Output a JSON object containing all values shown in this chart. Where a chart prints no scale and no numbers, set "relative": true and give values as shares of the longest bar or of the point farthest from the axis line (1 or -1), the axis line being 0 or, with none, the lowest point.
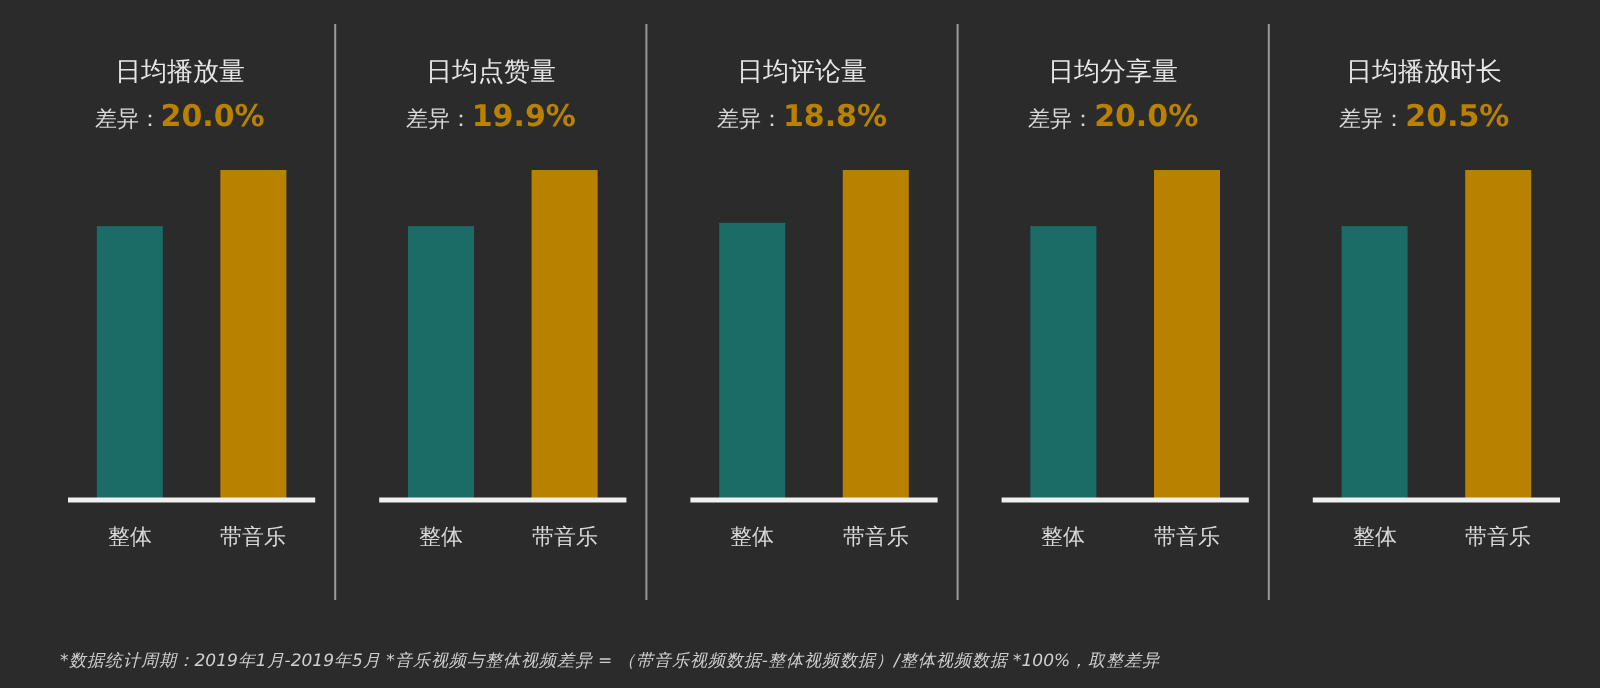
{
  "chart_data": [
    {
      "type": "bar",
      "title": "日均播放量",
      "subtitle": "差异：**20.0%**",
      "categories": [
        "整体",
        "带音乐"
      ],
      "values": [
        0.83,
        1
      ],
      "colors": [
        "#1b6b66",
        "#b88200"
      ],
      "relative": true,
      "annotations": [
        "*数据统计周期：2019年1月-2019年5月 *音乐视频与整体视频差异 = （带音乐视频数据-整体视频数据）/整体视频数据 *100%，取整差异"
      ]
    },
    {
      "type": "bar",
      "title": "日均点赞量",
      "subtitle": "差异：**19.9%**",
      "categories": [
        "整体",
        "带音乐"
      ],
      "values": [
        0.83,
        1
      ],
      "colors": [
        "#1b6b66",
        "#b88200"
      ],
      "relative": true
    },
    {
      "type": "bar",
      "title": "日均评论量",
      "subtitle": "差异：**18.8%**",
      "categories": [
        "整体",
        "带音乐"
      ],
      "values": [
        0.84,
        1
      ],
      "colors": [
        "#1b6b66",
        "#b88200"
      ],
      "relative": true
    },
    {
      "type": "bar",
      "title": "日均分享量",
      "subtitle": "差异：**20.0%**",
      "categories": [
        "整体",
        "带音乐"
      ],
      "values": [
        0.83,
        1
      ],
      "colors": [
        "#1b6b66",
        "#b88200"
      ],
      "relative": true
    },
    {
      "type": "bar",
      "title": "日均播放时长",
      "subtitle": "差异：**20.5%**",
      "categories": [
        "整体",
        "带音乐"
      ],
      "values": [
        0.83,
        1
      ],
      "colors": [
        "#1b6b66",
        "#b88200"
      ],
      "relative": true
    }
  ]
}
